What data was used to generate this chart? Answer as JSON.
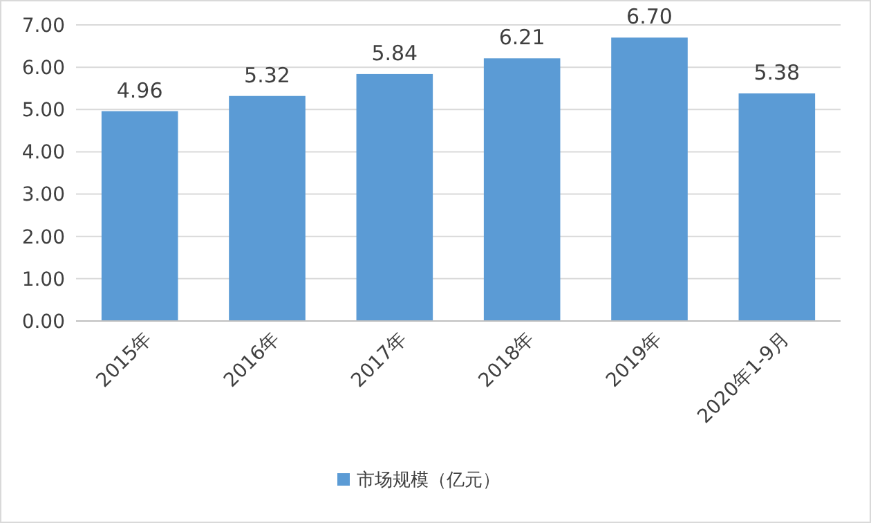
{
  "chart_data": {
    "type": "bar",
    "categories": [
      "2015年",
      "2016年",
      "2017年",
      "2018年",
      "2019年",
      "2020年1-9月"
    ],
    "series": [
      {
        "name": "市场规模（亿元）",
        "color": "#5b9bd5",
        "values": [
          4.96,
          5.32,
          5.84,
          6.21,
          6.7,
          5.38
        ]
      }
    ],
    "value_labels": [
      "4.96",
      "5.32",
      "5.84",
      "6.21",
      "6.70",
      "5.38"
    ],
    "ylim": [
      0,
      7
    ],
    "yticks": [
      {
        "value": 0,
        "label": "0.00"
      },
      {
        "value": 1,
        "label": "1.00"
      },
      {
        "value": 2,
        "label": "2.00"
      },
      {
        "value": 3,
        "label": "3.00"
      },
      {
        "value": 4,
        "label": "4.00"
      },
      {
        "value": 5,
        "label": "5.00"
      },
      {
        "value": 6,
        "label": "6.00"
      },
      {
        "value": 7,
        "label": "7.00"
      }
    ],
    "grid": "y",
    "legend": "bottom"
  }
}
